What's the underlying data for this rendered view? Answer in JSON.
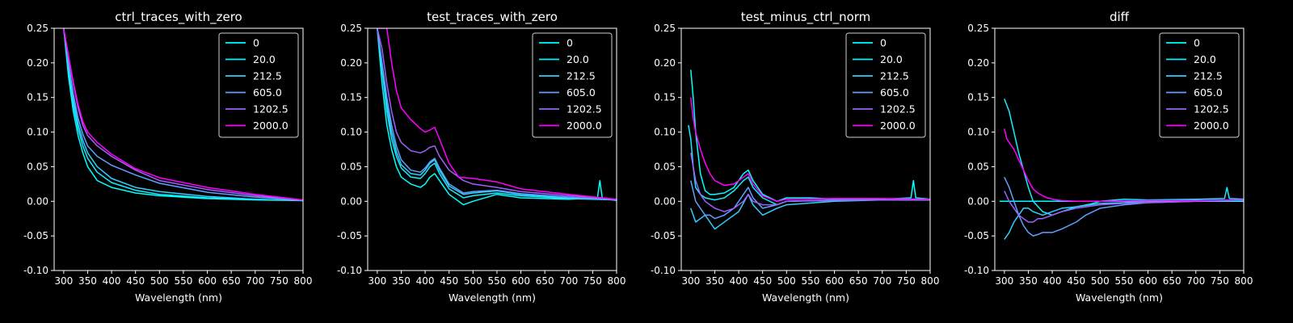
{
  "chart_data": [
    {
      "type": "line",
      "title": "ctrl_traces_with_zero",
      "xlabel": "Wavelength (nm)",
      "ylabel": "",
      "xlim": [
        280,
        800
      ],
      "ylim": [
        -0.1,
        0.25
      ],
      "xticks": [
        300,
        350,
        400,
        450,
        500,
        550,
        600,
        650,
        700,
        750,
        800
      ],
      "yticks": [
        -0.1,
        -0.05,
        0.0,
        0.05,
        0.1,
        0.15,
        0.2,
        0.25
      ],
      "legend_position": "top-right",
      "series": [
        {
          "name": "0",
          "color": "#00ffff",
          "x": [
            300,
            310,
            320,
            330,
            340,
            350,
            370,
            400,
            450,
            500,
            600,
            700,
            800
          ],
          "y": [
            0.25,
            0.18,
            0.13,
            0.095,
            0.07,
            0.05,
            0.03,
            0.02,
            0.012,
            0.008,
            0.004,
            0.002,
            0.001
          ]
        },
        {
          "name": "20.0",
          "color": "#0fefff",
          "x": [
            300,
            310,
            320,
            330,
            340,
            350,
            370,
            400,
            450,
            500,
            600,
            700,
            800
          ],
          "y": [
            0.25,
            0.19,
            0.14,
            0.105,
            0.08,
            0.062,
            0.042,
            0.027,
            0.016,
            0.01,
            0.005,
            0.003,
            0.001
          ]
        },
        {
          "name": "212.5",
          "color": "#30cfff",
          "x": [
            300,
            310,
            320,
            330,
            340,
            350,
            370,
            400,
            450,
            500,
            600,
            700,
            800
          ],
          "y": [
            0.25,
            0.195,
            0.148,
            0.112,
            0.088,
            0.07,
            0.05,
            0.033,
            0.02,
            0.014,
            0.007,
            0.003,
            0.001
          ]
        },
        {
          "name": "605.0",
          "color": "#60a0ff",
          "x": [
            300,
            310,
            320,
            330,
            340,
            350,
            370,
            400,
            450,
            500,
            600,
            700,
            800
          ],
          "y": [
            0.25,
            0.2,
            0.155,
            0.12,
            0.097,
            0.08,
            0.065,
            0.052,
            0.038,
            0.026,
            0.013,
            0.006,
            0.002
          ]
        },
        {
          "name": "1202.5",
          "color": "#9f60ff",
          "x": [
            300,
            310,
            320,
            330,
            340,
            350,
            370,
            400,
            450,
            500,
            600,
            700,
            800
          ],
          "y": [
            0.25,
            0.21,
            0.17,
            0.135,
            0.11,
            0.095,
            0.08,
            0.065,
            0.045,
            0.03,
            0.017,
            0.008,
            0.002
          ]
        },
        {
          "name": "2000.0",
          "color": "#ff00ff",
          "x": [
            300,
            310,
            320,
            330,
            340,
            350,
            370,
            400,
            450,
            500,
            600,
            700,
            800
          ],
          "y": [
            0.25,
            0.21,
            0.172,
            0.14,
            0.115,
            0.1,
            0.085,
            0.068,
            0.047,
            0.034,
            0.02,
            0.01,
            0.002
          ]
        }
      ]
    },
    {
      "type": "line",
      "title": "test_traces_with_zero",
      "xlabel": "Wavelength (nm)",
      "ylabel": "",
      "xlim": [
        280,
        800
      ],
      "ylim": [
        -0.1,
        0.25
      ],
      "xticks": [
        300,
        350,
        400,
        450,
        500,
        550,
        600,
        650,
        700,
        750,
        800
      ],
      "yticks": [
        -0.1,
        -0.05,
        0.0,
        0.05,
        0.1,
        0.15,
        0.2,
        0.25
      ],
      "legend_position": "top-right",
      "series": [
        {
          "name": "0",
          "color": "#00ffff",
          "x": [
            300,
            310,
            320,
            330,
            340,
            350,
            370,
            390,
            400,
            410,
            420,
            430,
            450,
            480,
            500,
            550,
            600,
            700,
            760,
            765,
            770,
            800
          ],
          "y": [
            0.25,
            0.17,
            0.11,
            0.075,
            0.05,
            0.035,
            0.025,
            0.02,
            0.025,
            0.035,
            0.04,
            0.03,
            0.01,
            -0.005,
            0.0,
            0.01,
            0.005,
            0.003,
            0.005,
            0.03,
            0.005,
            0.001
          ]
        },
        {
          "name": "20.0",
          "color": "#0fefff",
          "x": [
            300,
            310,
            320,
            330,
            340,
            350,
            370,
            390,
            400,
            410,
            420,
            430,
            450,
            480,
            500,
            550,
            600,
            700,
            800
          ],
          "y": [
            0.25,
            0.19,
            0.13,
            0.09,
            0.065,
            0.048,
            0.035,
            0.033,
            0.04,
            0.05,
            0.055,
            0.04,
            0.018,
            0.005,
            0.008,
            0.012,
            0.008,
            0.004,
            0.002
          ]
        },
        {
          "name": "212.5",
          "color": "#30cfff",
          "x": [
            300,
            310,
            320,
            330,
            340,
            350,
            370,
            390,
            400,
            410,
            420,
            430,
            450,
            480,
            500,
            550,
            600,
            700,
            800
          ],
          "y": [
            0.25,
            0.195,
            0.14,
            0.1,
            0.072,
            0.053,
            0.04,
            0.038,
            0.045,
            0.055,
            0.06,
            0.045,
            0.022,
            0.01,
            0.012,
            0.015,
            0.01,
            0.005,
            0.002
          ]
        },
        {
          "name": "605.0",
          "color": "#60a0ff",
          "x": [
            300,
            310,
            320,
            330,
            340,
            350,
            370,
            390,
            400,
            410,
            420,
            430,
            450,
            480,
            500,
            550,
            600,
            700,
            800
          ],
          "y": [
            0.25,
            0.2,
            0.15,
            0.11,
            0.08,
            0.06,
            0.045,
            0.042,
            0.048,
            0.057,
            0.062,
            0.048,
            0.025,
            0.012,
            0.014,
            0.016,
            0.011,
            0.006,
            0.002
          ]
        },
        {
          "name": "1202.5",
          "color": "#9f60ff",
          "x": [
            300,
            310,
            320,
            330,
            340,
            350,
            370,
            390,
            400,
            410,
            420,
            430,
            450,
            480,
            500,
            550,
            600,
            700,
            800
          ],
          "y": [
            0.25,
            0.22,
            0.17,
            0.13,
            0.1,
            0.085,
            0.073,
            0.07,
            0.073,
            0.078,
            0.08,
            0.065,
            0.045,
            0.03,
            0.025,
            0.02,
            0.014,
            0.008,
            0.003
          ]
        },
        {
          "name": "2000.0",
          "color": "#ff00ff",
          "x": [
            300,
            320,
            330,
            340,
            350,
            370,
            390,
            400,
            410,
            420,
            430,
            450,
            470,
            500,
            550,
            600,
            700,
            800
          ],
          "y": [
            0.25,
            0.25,
            0.2,
            0.16,
            0.135,
            0.118,
            0.105,
            0.1,
            0.103,
            0.107,
            0.09,
            0.055,
            0.035,
            0.033,
            0.028,
            0.018,
            0.01,
            0.003
          ]
        }
      ]
    },
    {
      "type": "line",
      "title": "test_minus_ctrl_norm",
      "xlabel": "Wavelength (nm)",
      "ylabel": "",
      "xlim": [
        280,
        800
      ],
      "ylim": [
        -0.1,
        0.25
      ],
      "xticks": [
        300,
        350,
        400,
        450,
        500,
        550,
        600,
        650,
        700,
        750,
        800
      ],
      "yticks": [
        -0.1,
        -0.05,
        0.0,
        0.05,
        0.1,
        0.15,
        0.2,
        0.25
      ],
      "legend_position": "top-right",
      "series": [
        {
          "name": "0",
          "color": "#00ffff",
          "x": [
            300,
            305,
            310,
            320,
            330,
            340,
            350,
            370,
            390,
            410,
            420,
            430,
            450,
            480,
            500,
            550,
            600,
            700,
            760,
            765,
            770,
            800
          ],
          "y": [
            0.19,
            0.15,
            0.1,
            0.04,
            0.015,
            0.01,
            0.01,
            0.012,
            0.02,
            0.04,
            0.045,
            0.03,
            0.01,
            0.0,
            0.005,
            0.005,
            0.003,
            0.003,
            0.005,
            0.03,
            0.005,
            0.003
          ]
        },
        {
          "name": "20.0",
          "color": "#0fefff",
          "x": [
            295,
            300,
            305,
            310,
            320,
            330,
            350,
            370,
            390,
            410,
            420,
            430,
            450,
            480,
            500,
            600,
            700,
            800
          ],
          "y": [
            0.11,
            0.09,
            0.05,
            0.02,
            0.01,
            0.005,
            0.002,
            0.005,
            0.015,
            0.03,
            0.035,
            0.02,
            0.005,
            -0.005,
            0.0,
            0.002,
            0.003,
            0.002
          ]
        },
        {
          "name": "212.5",
          "color": "#30cfff",
          "x": [
            300,
            310,
            320,
            330,
            340,
            350,
            360,
            380,
            400,
            420,
            430,
            450,
            480,
            500,
            600,
            700,
            800
          ],
          "y": [
            -0.01,
            -0.03,
            -0.025,
            -0.02,
            -0.03,
            -0.04,
            -0.035,
            -0.025,
            -0.015,
            0.01,
            -0.005,
            -0.02,
            -0.01,
            -0.005,
            0.0,
            0.002,
            0.002
          ]
        },
        {
          "name": "605.0",
          "color": "#60a0ff",
          "x": [
            300,
            310,
            320,
            330,
            340,
            350,
            370,
            390,
            410,
            420,
            430,
            450,
            480,
            500,
            600,
            700,
            800
          ],
          "y": [
            0.03,
            0.0,
            -0.01,
            -0.02,
            -0.02,
            -0.025,
            -0.02,
            -0.01,
            0.01,
            0.02,
            0.005,
            -0.01,
            -0.005,
            0.0,
            0.001,
            0.002,
            0.002
          ]
        },
        {
          "name": "1202.5",
          "color": "#9f60ff",
          "x": [
            300,
            310,
            320,
            330,
            340,
            350,
            370,
            390,
            410,
            420,
            430,
            450,
            480,
            500,
            600,
            700,
            800
          ],
          "y": [
            0.07,
            0.03,
            0.01,
            0.0,
            -0.005,
            -0.01,
            -0.015,
            -0.01,
            0.0,
            0.01,
            0.0,
            -0.005,
            -0.005,
            0.0,
            0.002,
            0.002,
            0.003
          ]
        },
        {
          "name": "2000.0",
          "color": "#ff00ff",
          "x": [
            300,
            305,
            310,
            320,
            330,
            340,
            350,
            370,
            390,
            410,
            420,
            430,
            450,
            480,
            500,
            600,
            700,
            800
          ],
          "y": [
            0.15,
            0.12,
            0.1,
            0.075,
            0.055,
            0.04,
            0.03,
            0.023,
            0.025,
            0.035,
            0.04,
            0.025,
            0.008,
            0.0,
            0.003,
            0.004,
            0.004,
            0.003
          ]
        }
      ]
    },
    {
      "type": "line",
      "title": "diff",
      "xlabel": "Wavelength (nm)",
      "ylabel": "",
      "xlim": [
        280,
        800
      ],
      "ylim": [
        -0.1,
        0.25
      ],
      "xticks": [
        300,
        350,
        400,
        450,
        500,
        550,
        600,
        650,
        700,
        750,
        800
      ],
      "yticks": [
        -0.1,
        -0.05,
        0.0,
        0.05,
        0.1,
        0.15,
        0.2,
        0.25
      ],
      "legend_position": "top-right",
      "series": [
        {
          "name": "0",
          "color": "#00ffff",
          "x": [
            290,
            800
          ],
          "y": [
            0.0,
            0.0
          ]
        },
        {
          "name": "20.0",
          "color": "#0fefff",
          "x": [
            300,
            310,
            320,
            330,
            340,
            350,
            360,
            380,
            400,
            420,
            450,
            480,
            500,
            550,
            600,
            700,
            760,
            765,
            770,
            800
          ],
          "y": [
            0.148,
            0.13,
            0.1,
            0.07,
            0.045,
            0.02,
            0.0,
            -0.015,
            -0.02,
            -0.015,
            -0.008,
            -0.004,
            0.0,
            0.003,
            0.002,
            0.003,
            0.004,
            0.02,
            0.004,
            0.003
          ]
        },
        {
          "name": "212.5",
          "color": "#30cfff",
          "x": [
            300,
            310,
            320,
            330,
            340,
            350,
            360,
            380,
            400,
            420,
            450,
            480,
            500,
            550,
            600,
            700,
            800
          ],
          "y": [
            -0.055,
            -0.045,
            -0.03,
            -0.02,
            -0.01,
            -0.01,
            -0.015,
            -0.02,
            -0.015,
            -0.01,
            -0.008,
            -0.005,
            -0.003,
            -0.002,
            0.0,
            0.001,
            0.002
          ]
        },
        {
          "name": "605.0",
          "color": "#60a0ff",
          "x": [
            300,
            310,
            320,
            330,
            340,
            350,
            360,
            370,
            380,
            400,
            420,
            450,
            470,
            500,
            550,
            600,
            700,
            800
          ],
          "y": [
            0.035,
            0.02,
            0.0,
            -0.02,
            -0.035,
            -0.045,
            -0.05,
            -0.048,
            -0.045,
            -0.045,
            -0.04,
            -0.03,
            -0.02,
            -0.01,
            -0.005,
            -0.002,
            0.0,
            0.002
          ]
        },
        {
          "name": "1202.5",
          "color": "#9f60ff",
          "x": [
            300,
            310,
            320,
            330,
            340,
            350,
            360,
            370,
            380,
            400,
            420,
            450,
            500,
            550,
            600,
            700,
            800
          ],
          "y": [
            0.015,
            0.0,
            -0.01,
            -0.02,
            -0.025,
            -0.03,
            -0.03,
            -0.025,
            -0.025,
            -0.02,
            -0.015,
            -0.01,
            -0.005,
            -0.003,
            -0.002,
            0.0,
            0.002
          ]
        },
        {
          "name": "2000.0",
          "color": "#ff00ff",
          "x": [
            300,
            305,
            310,
            320,
            330,
            340,
            350,
            360,
            370,
            380,
            390,
            400,
            420,
            450,
            500,
            600,
            700,
            800
          ],
          "y": [
            0.105,
            0.09,
            0.085,
            0.075,
            0.06,
            0.045,
            0.03,
            0.018,
            0.012,
            0.008,
            0.005,
            0.003,
            0.001,
            0.0,
            0.0,
            0.001,
            0.001,
            0.002
          ]
        }
      ]
    }
  ]
}
